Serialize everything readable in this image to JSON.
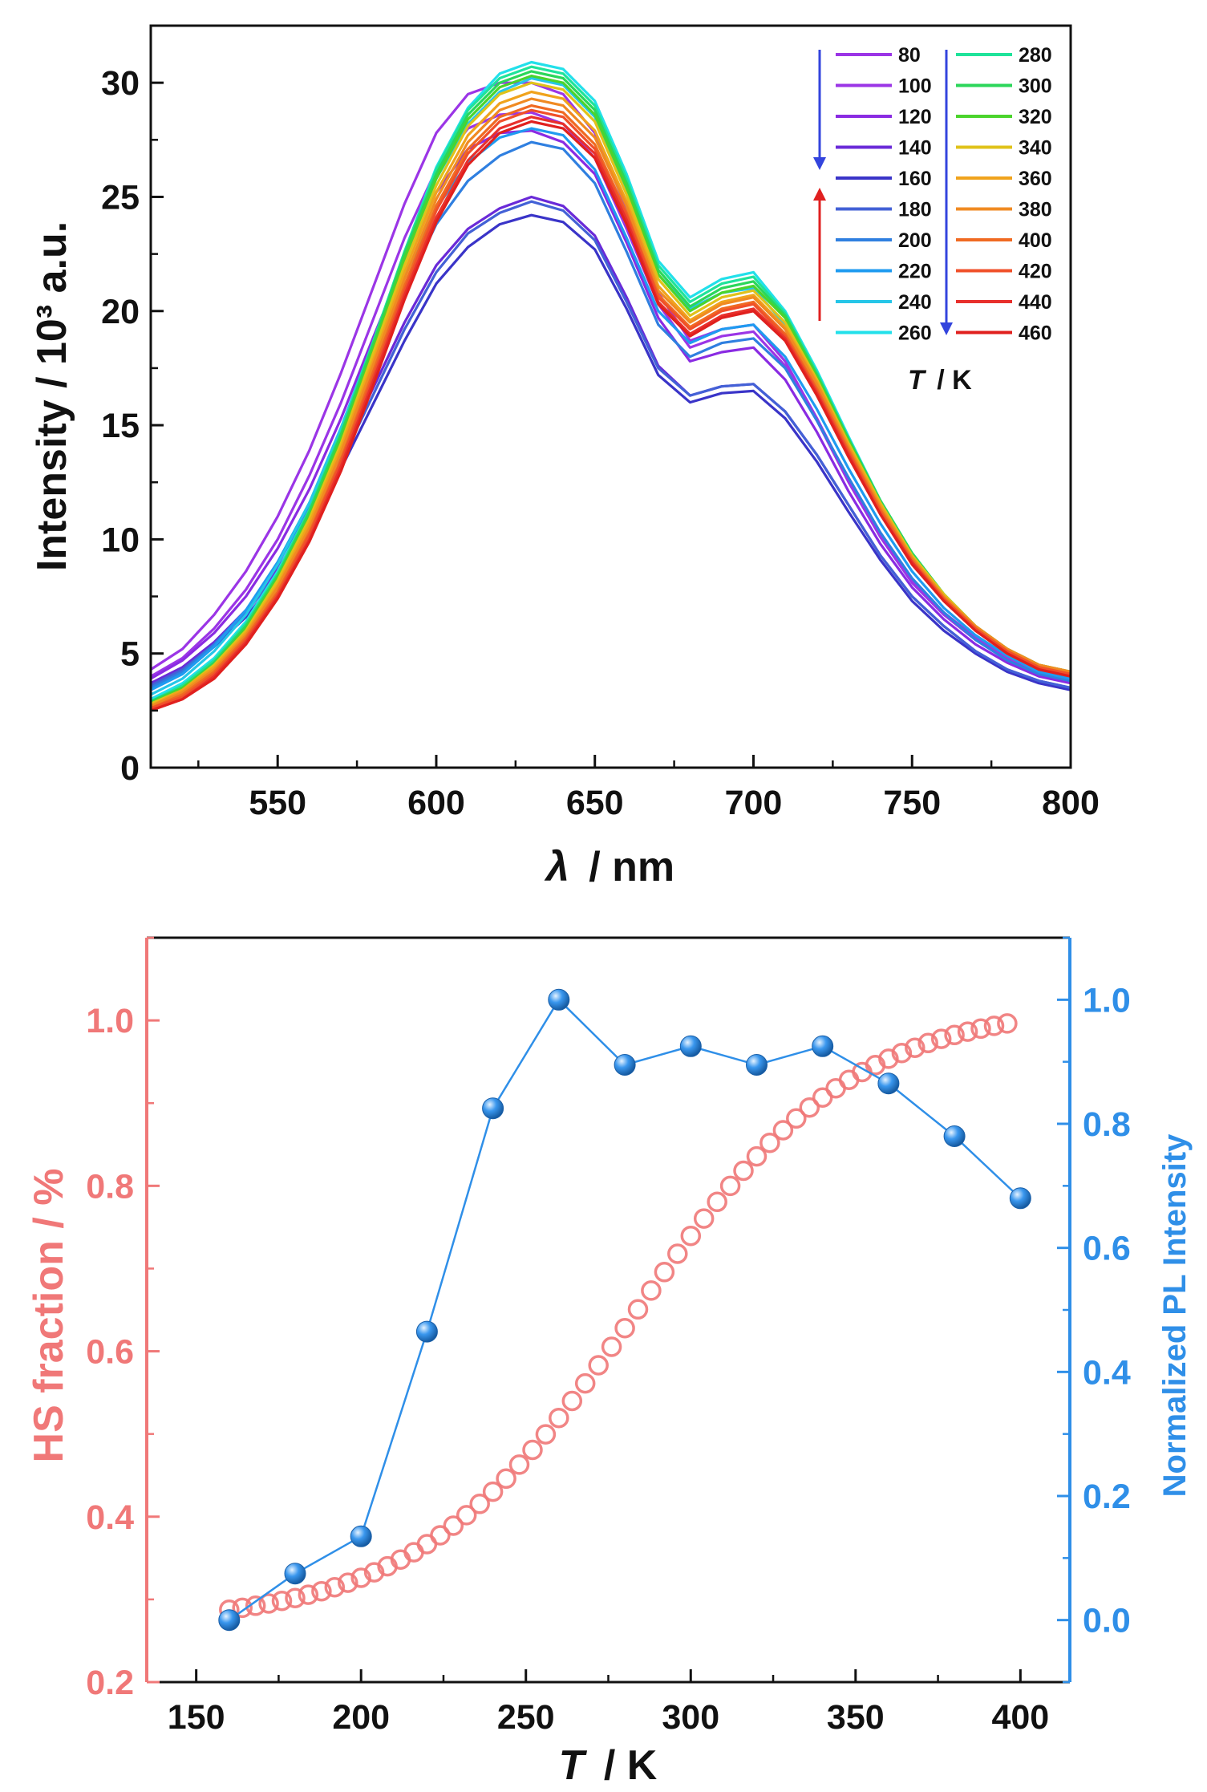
{
  "chart_data": [
    {
      "type": "line",
      "xlabel_symbol": "λ",
      "xlabel_unit": "/ nm",
      "ylabel": "Intensity / 10³ a.u.",
      "xlim": [
        510,
        800
      ],
      "ylim": [
        0,
        32.5
      ],
      "xticks": [
        550,
        600,
        650,
        700,
        750,
        800
      ],
      "yticks": [
        0,
        5,
        10,
        15,
        20,
        25,
        30
      ],
      "legend_title_symbol": "T",
      "legend_title_unit": "/ K",
      "legend_placement": "top-right",
      "grid": false,
      "x": [
        510,
        520,
        530,
        540,
        550,
        560,
        570,
        580,
        590,
        600,
        610,
        620,
        630,
        640,
        650,
        660,
        670,
        680,
        690,
        700,
        710,
        720,
        730,
        740,
        750,
        760,
        770,
        780,
        790,
        800
      ],
      "series": [
        {
          "name": "80",
          "color": "#9b35e6",
          "values": [
            4.3,
            5.2,
            6.7,
            8.6,
            11.0,
            13.9,
            17.3,
            21.0,
            24.7,
            27.8,
            29.5,
            30.0,
            30.0,
            29.5,
            27.8,
            24.5,
            20.8,
            18.7,
            19.2,
            19.4,
            17.8,
            15.3,
            12.6,
            10.2,
            8.2,
            6.8,
            5.7,
            4.9,
            4.3,
            4.0
          ]
        },
        {
          "name": "100",
          "color": "#9b35e6",
          "values": [
            4.0,
            4.8,
            6.1,
            7.8,
            10.0,
            12.8,
            16.0,
            19.6,
            23.2,
            26.2,
            28.0,
            28.6,
            28.7,
            28.2,
            26.7,
            23.6,
            20.3,
            18.4,
            18.9,
            19.1,
            17.6,
            15.2,
            12.5,
            10.1,
            8.1,
            6.7,
            5.6,
            4.8,
            4.2,
            3.9
          ]
        },
        {
          "name": "120",
          "color": "#8a2be2",
          "values": [
            3.9,
            4.7,
            5.9,
            7.5,
            9.6,
            12.2,
            15.3,
            18.8,
            22.2,
            25.2,
            27.1,
            27.8,
            27.9,
            27.4,
            26.0,
            23.0,
            19.7,
            17.8,
            18.2,
            18.4,
            17.0,
            14.7,
            12.1,
            9.8,
            7.9,
            6.5,
            5.4,
            4.6,
            4.0,
            3.7
          ]
        },
        {
          "name": "140",
          "color": "#6a2ad8",
          "values": [
            3.7,
            4.4,
            5.5,
            6.9,
            8.7,
            11.0,
            13.7,
            16.6,
            19.5,
            22.0,
            23.6,
            24.5,
            25.0,
            24.6,
            23.3,
            20.6,
            17.6,
            16.3,
            16.7,
            16.8,
            15.6,
            13.7,
            11.5,
            9.3,
            7.5,
            6.2,
            5.1,
            4.3,
            3.8,
            3.5
          ]
        },
        {
          "name": "160",
          "color": "#3a34c8",
          "values": [
            3.6,
            4.2,
            5.3,
            6.6,
            8.3,
            10.5,
            13.1,
            15.9,
            18.7,
            21.2,
            22.8,
            23.8,
            24.2,
            23.9,
            22.7,
            20.1,
            17.2,
            16.0,
            16.4,
            16.5,
            15.3,
            13.4,
            11.2,
            9.1,
            7.3,
            6.0,
            5.0,
            4.2,
            3.7,
            3.4
          ]
        },
        {
          "name": "180",
          "color": "#4361d6",
          "values": [
            3.6,
            4.3,
            5.4,
            6.8,
            8.5,
            10.8,
            13.4,
            16.3,
            19.2,
            21.7,
            23.4,
            24.3,
            24.8,
            24.4,
            23.1,
            20.4,
            17.5,
            16.3,
            16.7,
            16.8,
            15.6,
            13.7,
            11.5,
            9.3,
            7.5,
            6.2,
            5.1,
            4.3,
            3.8,
            3.5
          ]
        },
        {
          "name": "200",
          "color": "#2f7fe0",
          "values": [
            3.5,
            4.2,
            5.4,
            6.9,
            8.9,
            11.4,
            14.4,
            17.6,
            20.9,
            23.8,
            25.7,
            26.8,
            27.4,
            27.1,
            25.6,
            22.6,
            19.4,
            18.0,
            18.6,
            18.8,
            17.5,
            15.2,
            12.7,
            10.3,
            8.3,
            6.8,
            5.6,
            4.7,
            4.1,
            3.8
          ]
        },
        {
          "name": "220",
          "color": "#1f9bf0",
          "values": [
            3.4,
            4.1,
            5.3,
            6.9,
            9.0,
            11.6,
            14.7,
            18.1,
            21.5,
            24.5,
            26.5,
            27.6,
            28.0,
            27.7,
            26.2,
            23.2,
            20.0,
            18.6,
            19.2,
            19.4,
            18.0,
            15.7,
            13.1,
            10.7,
            8.6,
            7.0,
            5.8,
            4.9,
            4.2,
            3.9
          ]
        },
        {
          "name": "240",
          "color": "#26c6e8",
          "values": [
            3.2,
            3.9,
            5.1,
            6.7,
            8.9,
            11.6,
            14.9,
            18.6,
            22.4,
            25.8,
            28.2,
            29.6,
            30.2,
            29.9,
            28.5,
            25.3,
            21.6,
            20.1,
            20.8,
            21.0,
            19.4,
            16.8,
            14.0,
            11.3,
            9.1,
            7.4,
            6.1,
            5.1,
            4.4,
            4.1
          ]
        },
        {
          "name": "260",
          "color": "#22e0ea",
          "values": [
            3.0,
            3.7,
            4.8,
            6.4,
            8.6,
            11.3,
            14.7,
            18.6,
            22.6,
            26.3,
            28.9,
            30.4,
            30.9,
            30.6,
            29.2,
            26.0,
            22.2,
            20.6,
            21.4,
            21.7,
            20.0,
            17.4,
            14.5,
            11.7,
            9.4,
            7.6,
            6.2,
            5.2,
            4.5,
            4.2
          ]
        },
        {
          "name": "280",
          "color": "#1fe39a",
          "values": [
            2.9,
            3.6,
            4.7,
            6.3,
            8.5,
            11.3,
            14.7,
            18.6,
            22.6,
            26.2,
            28.8,
            30.2,
            30.7,
            30.4,
            29.0,
            25.8,
            22.0,
            20.4,
            21.2,
            21.5,
            19.9,
            17.3,
            14.4,
            11.7,
            9.4,
            7.6,
            6.2,
            5.2,
            4.5,
            4.2
          ]
        },
        {
          "name": "300",
          "color": "#2bd65a",
          "values": [
            2.9,
            3.5,
            4.6,
            6.2,
            8.4,
            11.2,
            14.6,
            18.5,
            22.5,
            26.0,
            28.6,
            30.0,
            30.5,
            30.2,
            28.8,
            25.6,
            21.8,
            20.2,
            21.0,
            21.3,
            19.8,
            17.2,
            14.4,
            11.7,
            9.4,
            7.6,
            6.2,
            5.2,
            4.5,
            4.2
          ]
        },
        {
          "name": "320",
          "color": "#4bd42c",
          "values": [
            2.8,
            3.5,
            4.5,
            6.1,
            8.3,
            11.0,
            14.4,
            18.3,
            22.3,
            25.8,
            28.4,
            29.8,
            30.3,
            30.0,
            28.6,
            25.4,
            21.6,
            20.0,
            20.8,
            21.1,
            19.7,
            17.1,
            14.3,
            11.6,
            9.3,
            7.6,
            6.2,
            5.2,
            4.5,
            4.2
          ]
        },
        {
          "name": "340",
          "color": "#e0c21a",
          "values": [
            2.8,
            3.4,
            4.5,
            6.0,
            8.2,
            10.9,
            14.2,
            18.1,
            22.0,
            25.5,
            28.1,
            29.5,
            30.0,
            29.7,
            28.3,
            25.1,
            21.4,
            19.8,
            20.6,
            20.9,
            19.5,
            17.0,
            14.2,
            11.6,
            9.3,
            7.6,
            6.2,
            5.2,
            4.5,
            4.2
          ]
        },
        {
          "name": "360",
          "color": "#f0a31c",
          "values": [
            2.7,
            3.4,
            4.4,
            5.9,
            8.0,
            10.7,
            14.0,
            17.8,
            21.7,
            25.2,
            27.7,
            29.1,
            29.6,
            29.3,
            27.9,
            24.8,
            21.1,
            19.6,
            20.4,
            20.7,
            19.3,
            16.9,
            14.1,
            11.5,
            9.2,
            7.5,
            6.2,
            5.2,
            4.5,
            4.2
          ]
        },
        {
          "name": "380",
          "color": "#f08a22",
          "values": [
            2.7,
            3.3,
            4.3,
            5.8,
            7.9,
            10.5,
            13.8,
            17.6,
            21.4,
            24.9,
            27.4,
            28.8,
            29.3,
            29.0,
            27.6,
            24.6,
            20.9,
            19.5,
            20.3,
            20.6,
            19.2,
            16.8,
            14.0,
            11.4,
            9.2,
            7.5,
            6.2,
            5.2,
            4.5,
            4.2
          ]
        },
        {
          "name": "400",
          "color": "#f06a22",
          "values": [
            2.6,
            3.2,
            4.2,
            5.7,
            7.7,
            10.3,
            13.5,
            17.3,
            21.1,
            24.6,
            27.1,
            28.5,
            29.0,
            28.7,
            27.3,
            24.3,
            20.7,
            19.3,
            20.1,
            20.4,
            19.0,
            16.6,
            13.9,
            11.3,
            9.1,
            7.4,
            6.1,
            5.1,
            4.4,
            4.1
          ]
        },
        {
          "name": "420",
          "color": "#f0502a",
          "values": [
            2.6,
            3.1,
            4.1,
            5.6,
            7.6,
            10.2,
            13.4,
            17.1,
            20.9,
            24.4,
            26.9,
            28.3,
            28.8,
            28.5,
            27.1,
            24.2,
            20.6,
            19.2,
            20.0,
            20.3,
            18.9,
            16.5,
            13.8,
            11.2,
            9.0,
            7.4,
            6.1,
            5.1,
            4.4,
            4.1
          ]
        },
        {
          "name": "440",
          "color": "#e8302c",
          "values": [
            2.5,
            3.0,
            4.0,
            5.5,
            7.5,
            10.0,
            13.2,
            16.9,
            20.7,
            24.1,
            26.6,
            28.0,
            28.5,
            28.2,
            26.9,
            24.0,
            20.4,
            19.0,
            19.8,
            20.1,
            18.8,
            16.4,
            13.7,
            11.1,
            9.0,
            7.3,
            6.0,
            5.0,
            4.3,
            4.0
          ]
        },
        {
          "name": "460",
          "color": "#e0201e",
          "values": [
            2.5,
            3.0,
            3.9,
            5.4,
            7.4,
            9.9,
            13.0,
            16.7,
            20.5,
            23.9,
            26.4,
            27.8,
            28.3,
            28.0,
            26.7,
            23.8,
            20.3,
            18.9,
            19.7,
            20.0,
            18.7,
            16.3,
            13.6,
            11.1,
            8.9,
            7.3,
            6.0,
            5.0,
            4.3,
            4.0
          ]
        }
      ]
    },
    {
      "type": "scatter",
      "xlabel_symbol": "T",
      "xlabel_unit": "/ K",
      "ylabel_left": "HS fraction / %",
      "ylabel_right": "Normalized PL Intensity",
      "xlim": [
        135,
        415
      ],
      "ylim_left": [
        0.2,
        1.1
      ],
      "ylim_right": [
        -0.1,
        1.1
      ],
      "xticks": [
        150,
        200,
        250,
        300,
        350,
        400
      ],
      "yticks_left": [
        0.2,
        0.4,
        0.6,
        0.8,
        1.0
      ],
      "yticks_right": [
        0.0,
        0.2,
        0.4,
        0.6,
        0.8,
        1.0
      ],
      "grid": false,
      "series": [
        {
          "axis": "left",
          "color": "#f07878",
          "marker": "open-circle",
          "x_start": 160,
          "x_end": 396,
          "x_step": 4,
          "logistic": {
            "base": 0.27,
            "amplitude": 0.75,
            "midpoint": 283,
            "width": 33
          }
        },
        {
          "axis": "right",
          "color": "#2f8fe8",
          "marker": "filled-sphere",
          "x": [
            160,
            180,
            200,
            220,
            240,
            260,
            280,
            300,
            320,
            340,
            360,
            380,
            400
          ],
          "values": [
            0.0,
            0.075,
            0.135,
            0.465,
            0.825,
            1.0,
            0.895,
            0.925,
            0.895,
            0.925,
            0.865,
            0.78,
            0.68
          ]
        }
      ]
    }
  ]
}
